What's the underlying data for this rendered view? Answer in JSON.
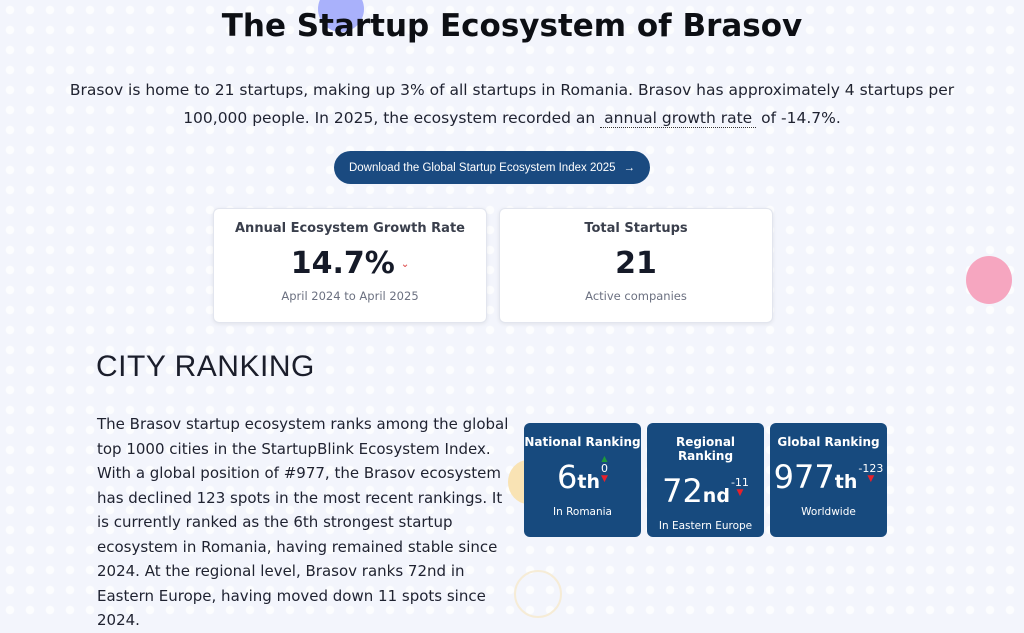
{
  "title": "The Startup Ecosystem of Brasov",
  "intro": {
    "before": "Brasov is home to 21 startups, making up 3% of all startups in Romania. Brasov has approximately 4 startups per 100,000 people. In 2025, the ecosystem recorded an",
    "link": "annual growth rate",
    "after": "of -14.7%."
  },
  "download_button": "Download the Global Startup Ecosystem Index 2025",
  "stats": [
    {
      "title": "Annual Ecosystem Growth Rate",
      "value": "14.7%",
      "trend": "down",
      "sub": "April 2024 to April 2025"
    },
    {
      "title": "Total Startups",
      "value": "21",
      "sub": "Active companies"
    }
  ],
  "city_ranking": {
    "heading": "CITY RANKING",
    "text": "The Brasov startup ecosystem ranks among the global top 1000 cities in the StartupBlink Ecosystem Index. With a global position of #977, the Brasov ecosystem has declined 123 spots in the most recent rankings. It is currently ranked as the 6th strongest startup ecosystem in Romania, having remained stable since 2024. At the regional level, Brasov ranks 72nd in Eastern Europe, having moved down 11 spots since 2024.",
    "cards": [
      {
        "title": "National Ranking",
        "rank": "6",
        "suffix": "th",
        "change": "0",
        "sub": "In Romania"
      },
      {
        "title": "Regional Ranking",
        "rank": "72",
        "suffix": "nd",
        "change": "-11",
        "sub": "In Eastern Europe"
      },
      {
        "title": "Global Ranking",
        "rank": "977",
        "suffix": "th",
        "change": "-123",
        "sub": "Worldwide"
      }
    ]
  },
  "colors": {
    "primary": "#174a7e",
    "down": "#e8212b",
    "up": "#1d9a3a",
    "background": "#f3f5fc"
  }
}
